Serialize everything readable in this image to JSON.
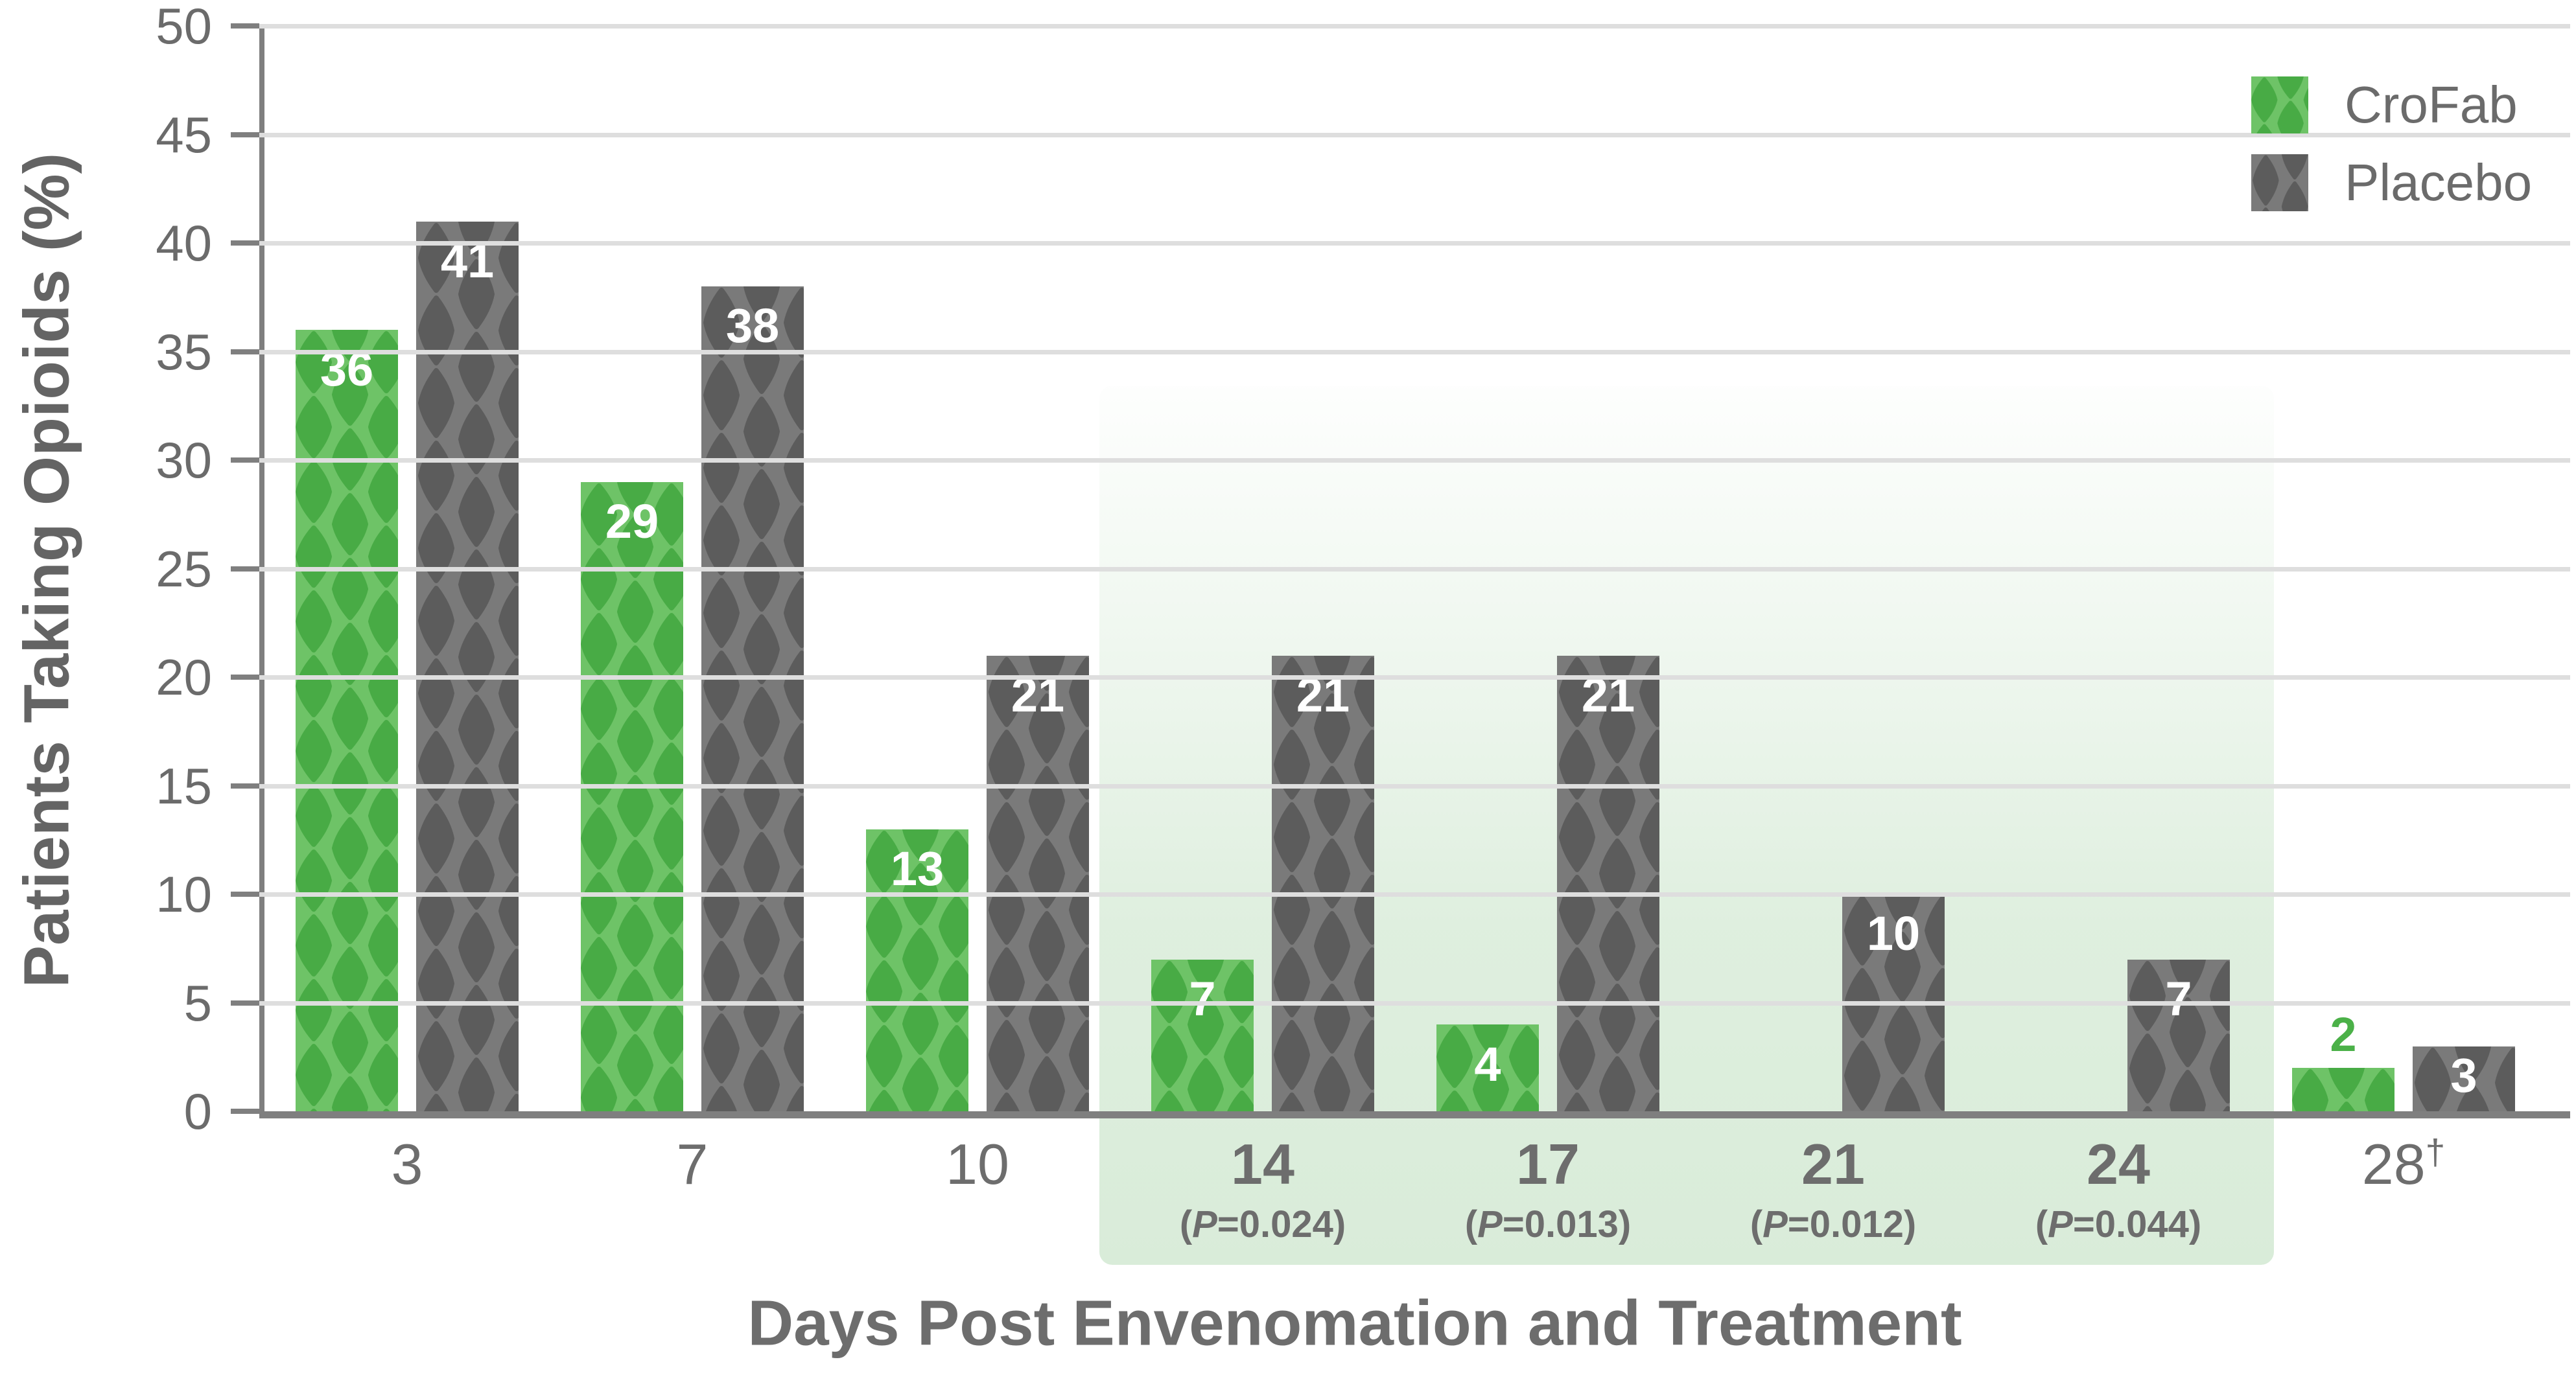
{
  "chart_data": {
    "type": "bar",
    "title": "",
    "ylabel": "Patients Taking Opioids (%)",
    "xlabel": "Days Post Envenomation and Treatment",
    "ylim": [
      0,
      50
    ],
    "y_ticks": [
      0,
      5,
      10,
      15,
      20,
      25,
      30,
      35,
      40,
      45,
      50
    ],
    "grid": "horizontal gridlines every 5 units",
    "legend_position": "top-right",
    "categories": [
      "3",
      "7",
      "10",
      "14",
      "17",
      "21",
      "24",
      "28†"
    ],
    "series": [
      {
        "name": "CroFab",
        "color": "#4bb148",
        "values": [
          36,
          29,
          13,
          7,
          4,
          null,
          null,
          2
        ]
      },
      {
        "name": "Placebo",
        "color": "#5c5c5c",
        "values": [
          41,
          38,
          21,
          21,
          21,
          10,
          7,
          3
        ]
      }
    ],
    "p_value_annotations": [
      null,
      null,
      null,
      "P=0.024",
      "P=0.013",
      "P=0.012",
      "P=0.044",
      null
    ],
    "highlighted_categories": [
      "14",
      "17",
      "21",
      "24"
    ],
    "footnote_marker": "†"
  },
  "legend": {
    "items": [
      {
        "label": "CroFab"
      },
      {
        "label": "Placebo"
      }
    ]
  },
  "colors": {
    "crofab_green": "#48ab45",
    "crofab_green_light": "#6ec367",
    "crofab_label_green": "#4bb148",
    "placebo_gray": "#5c5c5c",
    "placebo_gray_light": "#7a7a7a",
    "highlight_box": "#d9ecd9",
    "axis_line": "#7f7f7f",
    "gridline": "#dedede",
    "text_gray": "#6b6b6b",
    "bar_label_white": "#ffffff"
  }
}
